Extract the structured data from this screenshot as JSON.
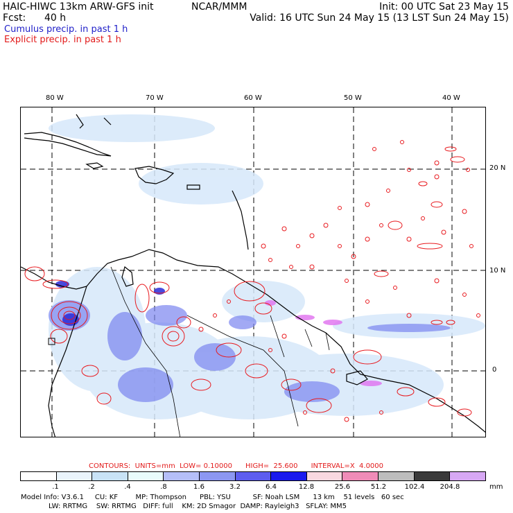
{
  "header": {
    "model": "HAIC-HIWC 13km ARW-GFS init",
    "org": "NCAR/MMM",
    "init": "Init: 00 UTC Sat 23 May 15",
    "fcst_label": "Fcst:",
    "fcst_value": "40 h",
    "valid": "Valid: 16 UTC Sun 24 May 15 (13 LST Sun 24 May 15)",
    "cumulus": "Cumulus precip. in past 1 h",
    "explicit": "Explicit precip. in past 1 h"
  },
  "map": {
    "lon_labels": [
      "80 W",
      "70 W",
      "60 W",
      "50 W",
      "40 W"
    ],
    "lat_labels": [
      "20 N",
      "10 N",
      "0"
    ],
    "colors": {
      "coast": "#000000",
      "explicit_contour": "#e8191e",
      "cumulus_light": "#d6e8fa",
      "cumulus_mid": "#7b86f0",
      "cumulus_dark": "#2a2ad8",
      "magenta": "#e070f0"
    }
  },
  "contours": {
    "text": "CONTOURS:  UNITS=mm  LOW= 0.10000      HIGH=  25.600      INTERVAL=X  4.0000"
  },
  "colorbar": {
    "labels": [
      ".1",
      ".2",
      ".4",
      ".8",
      "1.6",
      "3.2",
      "6.4",
      "12.8",
      "25.6",
      "51.2",
      "102.4",
      "204.8"
    ],
    "unit": "mm",
    "colors": [
      "#ffffff",
      "#eaf4fb",
      "#c9e3f6",
      "#e9fbfb",
      "#b5bff8",
      "#8c97f2",
      "#5d5df0",
      "#1a1aee",
      "#f9d8e0",
      "#f08cb8",
      "#bdbdbd",
      "#3a3a3a",
      "#d7a8f4"
    ]
  },
  "footer": {
    "line1": "Model Info: V3.6.1     CU: KF        MP: Thompson      PBL: YSU          SF: Noah LSM      13 km    51 levels   60 sec",
    "line2": "LW: RRTMG    SW: RRTMG   DIFF: full    KM: 2D Smagor  DAMP: Rayleigh3   SFLAY: MM5"
  }
}
